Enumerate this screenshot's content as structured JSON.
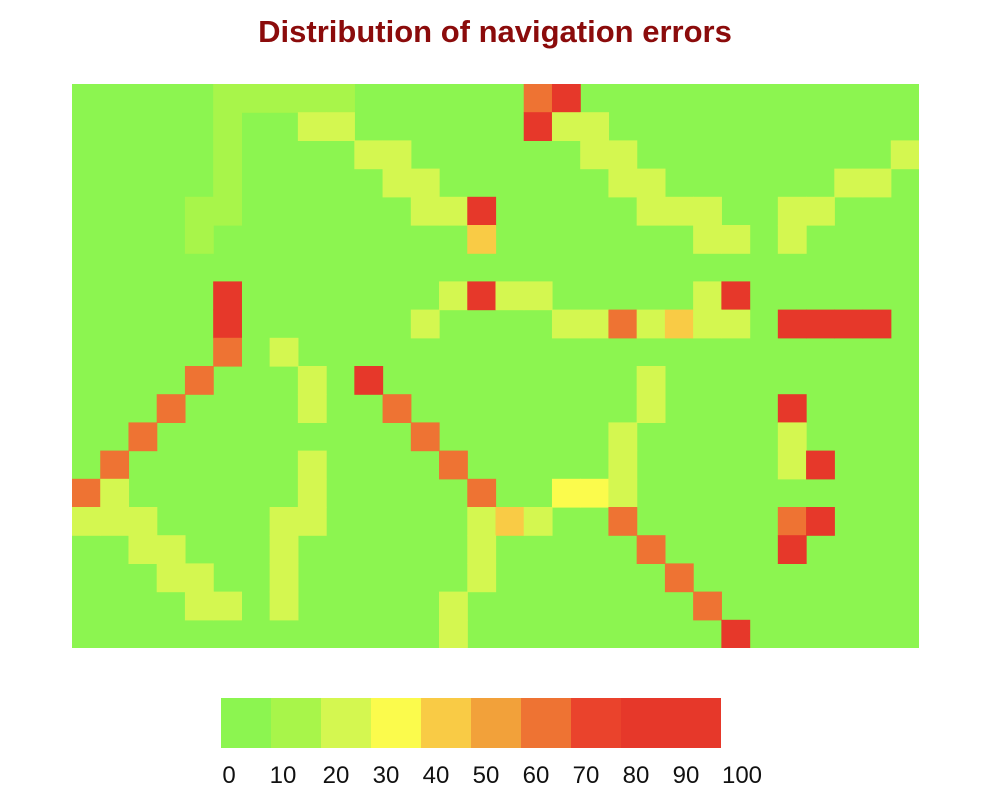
{
  "chart_data": {
    "type": "heatmap",
    "title": "Distribution of navigation errors",
    "xlabel": "",
    "ylabel": "",
    "colorbar": {
      "ticks": [
        "0",
        "10",
        "20",
        "30",
        "40",
        "50",
        "60",
        "70",
        "80",
        "90",
        "100"
      ],
      "bins": [
        0,
        10,
        20,
        30,
        40,
        50,
        60,
        70,
        80,
        90
      ],
      "colors": [
        "#8cf550",
        "#a8f54a",
        "#d4f750",
        "#fbfb4c",
        "#f9cb45",
        "#f2a13a",
        "#ee7333",
        "#ea432c",
        "#e6382a",
        "#e6382a"
      ],
      "range": [
        0,
        100
      ]
    },
    "n_cols": 30,
    "n_rows": 20,
    "background_value": 0,
    "cells": [
      [
        0,
        5,
        10
      ],
      [
        0,
        6,
        10
      ],
      [
        0,
        7,
        10
      ],
      [
        0,
        8,
        10
      ],
      [
        0,
        9,
        10
      ],
      [
        0,
        16,
        60
      ],
      [
        0,
        17,
        80
      ],
      [
        1,
        5,
        10
      ],
      [
        1,
        8,
        20
      ],
      [
        1,
        9,
        20
      ],
      [
        1,
        16,
        80
      ],
      [
        1,
        17,
        20
      ],
      [
        1,
        18,
        20
      ],
      [
        2,
        5,
        10
      ],
      [
        2,
        10,
        20
      ],
      [
        2,
        11,
        20
      ],
      [
        2,
        18,
        20
      ],
      [
        2,
        19,
        20
      ],
      [
        2,
        29,
        20
      ],
      [
        3,
        5,
        10
      ],
      [
        3,
        11,
        20
      ],
      [
        3,
        12,
        20
      ],
      [
        3,
        19,
        20
      ],
      [
        3,
        20,
        20
      ],
      [
        3,
        27,
        20
      ],
      [
        3,
        28,
        20
      ],
      [
        4,
        4,
        10
      ],
      [
        4,
        5,
        10
      ],
      [
        4,
        12,
        20
      ],
      [
        4,
        13,
        20
      ],
      [
        4,
        14,
        80
      ],
      [
        4,
        20,
        20
      ],
      [
        4,
        21,
        20
      ],
      [
        4,
        22,
        20
      ],
      [
        4,
        25,
        20
      ],
      [
        4,
        26,
        20
      ],
      [
        5,
        4,
        10
      ],
      [
        5,
        14,
        45
      ],
      [
        5,
        22,
        20
      ],
      [
        5,
        23,
        20
      ],
      [
        5,
        25,
        20
      ],
      [
        7,
        5,
        80
      ],
      [
        7,
        13,
        20
      ],
      [
        7,
        14,
        80
      ],
      [
        7,
        15,
        20
      ],
      [
        7,
        16,
        20
      ],
      [
        7,
        22,
        20
      ],
      [
        7,
        23,
        80
      ],
      [
        8,
        5,
        80
      ],
      [
        8,
        12,
        20
      ],
      [
        8,
        17,
        20
      ],
      [
        8,
        18,
        20
      ],
      [
        8,
        19,
        60
      ],
      [
        8,
        20,
        20
      ],
      [
        8,
        21,
        40
      ],
      [
        8,
        22,
        20
      ],
      [
        8,
        23,
        20
      ],
      [
        8,
        25,
        80
      ],
      [
        8,
        26,
        80
      ],
      [
        8,
        27,
        80
      ],
      [
        8,
        28,
        80
      ],
      [
        9,
        5,
        60
      ],
      [
        9,
        7,
        20
      ],
      [
        10,
        4,
        60
      ],
      [
        10,
        8,
        20
      ],
      [
        10,
        10,
        80
      ],
      [
        10,
        20,
        20
      ],
      [
        11,
        3,
        60
      ],
      [
        11,
        8,
        20
      ],
      [
        11,
        11,
        60
      ],
      [
        11,
        20,
        20
      ],
      [
        11,
        25,
        80
      ],
      [
        12,
        2,
        60
      ],
      [
        12,
        12,
        60
      ],
      [
        12,
        19,
        20
      ],
      [
        12,
        25,
        20
      ],
      [
        13,
        1,
        60
      ],
      [
        13,
        8,
        20
      ],
      [
        13,
        13,
        60
      ],
      [
        13,
        19,
        20
      ],
      [
        13,
        25,
        20
      ],
      [
        13,
        26,
        80
      ],
      [
        14,
        0,
        60
      ],
      [
        14,
        1,
        20
      ],
      [
        14,
        8,
        20
      ],
      [
        14,
        14,
        60
      ],
      [
        14,
        17,
        30
      ],
      [
        14,
        18,
        30
      ],
      [
        14,
        19,
        20
      ],
      [
        15,
        0,
        20
      ],
      [
        15,
        1,
        20
      ],
      [
        15,
        2,
        20
      ],
      [
        15,
        7,
        20
      ],
      [
        15,
        8,
        20
      ],
      [
        15,
        14,
        20
      ],
      [
        15,
        15,
        40
      ],
      [
        15,
        16,
        20
      ],
      [
        15,
        19,
        60
      ],
      [
        15,
        25,
        60
      ],
      [
        15,
        26,
        80
      ],
      [
        16,
        2,
        20
      ],
      [
        16,
        3,
        20
      ],
      [
        16,
        7,
        20
      ],
      [
        16,
        14,
        20
      ],
      [
        16,
        20,
        60
      ],
      [
        16,
        25,
        80
      ],
      [
        17,
        3,
        20
      ],
      [
        17,
        4,
        20
      ],
      [
        17,
        7,
        20
      ],
      [
        17,
        14,
        20
      ],
      [
        17,
        21,
        60
      ],
      [
        18,
        4,
        20
      ],
      [
        18,
        5,
        20
      ],
      [
        18,
        7,
        20
      ],
      [
        18,
        13,
        20
      ],
      [
        18,
        22,
        60
      ],
      [
        19,
        13,
        20
      ],
      [
        19,
        23,
        80
      ]
    ]
  }
}
